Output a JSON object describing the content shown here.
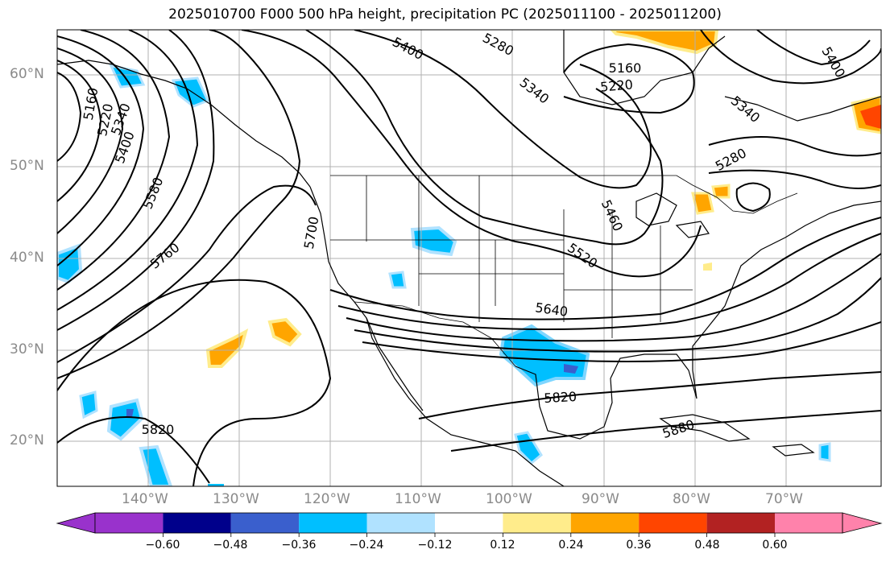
{
  "title": "2025010700 F000 500 hPa height, precipitation PC (2025011100 - 2025011200)",
  "latitude_labels": [
    "60°N",
    "50°N",
    "40°N",
    "30°N",
    "20°N"
  ],
  "longitude_labels": [
    "140°W",
    "130°W",
    "120°W",
    "110°W",
    "100°W",
    "90°W",
    "80°W",
    "70°W"
  ],
  "colorbar": {
    "ticks": [
      "−0.60",
      "−0.48",
      "−0.36",
      "−0.24",
      "−0.12",
      "0.12",
      "0.24",
      "0.36",
      "0.48",
      "0.60"
    ],
    "colors": [
      "#9932cc",
      "#00008b",
      "#3a5fcd",
      "#00bfff",
      "#b0e2ff",
      "#ffffff",
      "#ffec8b",
      "#ffa500",
      "#ff4500",
      "#b22222",
      "#ff82ab"
    ]
  },
  "contour_labels": [
    "5160",
    "5220",
    "5280",
    "5340",
    "5400",
    "5460",
    "5520",
    "5580",
    "5640",
    "5700",
    "5760",
    "5820",
    "5880"
  ],
  "colors": {
    "grid": "#b0b0b0",
    "tick_label": "#8a8a8a"
  }
}
